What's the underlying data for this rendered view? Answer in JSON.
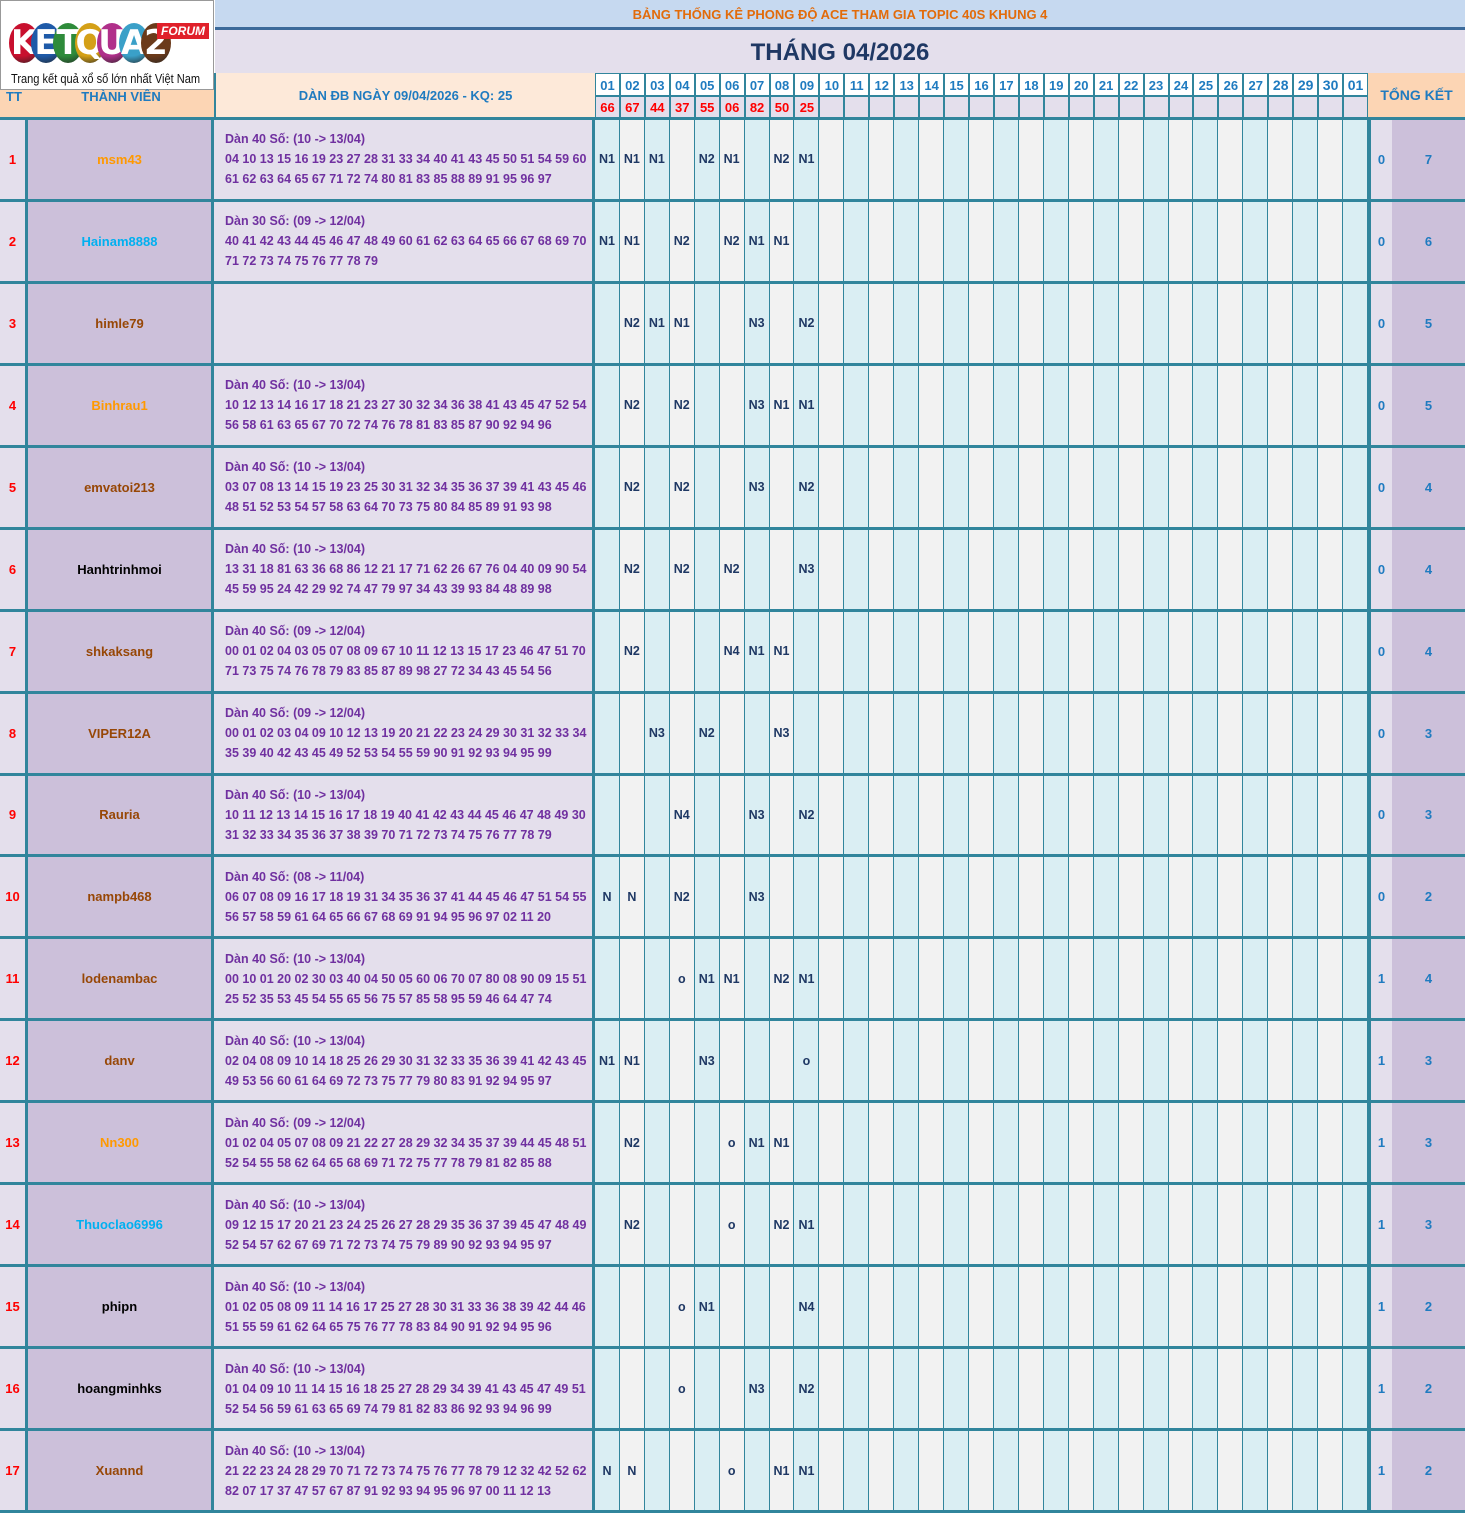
{
  "logo": {
    "text": "KETQUA2",
    "badge": "FORUM",
    "slogan": "Trang kết quả xổ số lớn nhất Việt Nam"
  },
  "header": {
    "title": "BẢNG THỐNG KÊ PHONG ĐỘ ACE THAM GIA TOPIC 40S KHUNG 4",
    "month": "THÁNG 04/2026",
    "tt": "TT",
    "member": "THÀNH VIÊN",
    "dan": "DÀN ĐB NGÀY 09/04/2026 - KQ: 25",
    "total": "TỔNG KẾT"
  },
  "days": [
    "01",
    "02",
    "03",
    "04",
    "05",
    "06",
    "07",
    "08",
    "09",
    "10",
    "11",
    "12",
    "13",
    "14",
    "15",
    "16",
    "17",
    "18",
    "19",
    "20",
    "21",
    "22",
    "23",
    "24",
    "25",
    "26",
    "27",
    "28",
    "29",
    "30",
    "01"
  ],
  "results": [
    "66",
    "67",
    "44",
    "37",
    "55",
    "06",
    "82",
    "50",
    "25"
  ],
  "colors": {
    "orange": "#ff9900",
    "cyan": "#00b0f0",
    "brown": "#974706",
    "black": "#000000",
    "border": "#31859c"
  },
  "rows": [
    {
      "tt": "1",
      "name": "msm43",
      "color": "orange",
      "dan": "Dàn 40 Số: (10 -> 13/04)",
      "l1": "04 10 13 15 16 19 23 27 28 31 33 34 40 41 43 45 50 51 54 59 60",
      "l2": "61 62 63 64 65 67 71 72 74 80 81 83 85 88 89 91 95 96 97",
      "marks": [
        "N1",
        "N1",
        "N1",
        "",
        "N2",
        "N1",
        "",
        "N2",
        "N1"
      ],
      "zero": "0",
      "total": "7"
    },
    {
      "tt": "2",
      "name": "Hainam8888",
      "color": "cyan",
      "dan": "Dàn 30 Số: (09 -> 12/04)",
      "l1": "40 41 42 43 44 45 46 47 48 49 60 61 62 63 64 65 66 67 68 69 70",
      "l2": "71 72 73 74 75 76 77 78 79",
      "marks": [
        "N1",
        "N1",
        "",
        "N2",
        "",
        "N2",
        "N1",
        "N1",
        ""
      ],
      "zero": "0",
      "total": "6"
    },
    {
      "tt": "3",
      "name": "himle79",
      "color": "brown",
      "dan": "",
      "l1": "",
      "l2": "",
      "marks": [
        "",
        "N2",
        "N1",
        "N1",
        "",
        "",
        "N3",
        "",
        "N2"
      ],
      "zero": "0",
      "total": "5"
    },
    {
      "tt": "4",
      "name": "Binhrau1",
      "color": "orange",
      "dan": "Dàn 40 Số: (10 -> 13/04)",
      "l1": "10 12 13 14 16 17 18 21 23 27 30 32 34 36 38 41 43 45 47 52 54",
      "l2": "56 58 61 63 65 67 70 72 74 76 78 81 83 85 87 90 92 94 96",
      "marks": [
        "",
        "N2",
        "",
        "N2",
        "",
        "",
        "N3",
        "N1",
        "N1"
      ],
      "zero": "0",
      "total": "5"
    },
    {
      "tt": "5",
      "name": "emvatoi213",
      "color": "brown",
      "dan": "Dàn 40 Số: (10 -> 13/04)",
      "l1": "03 07 08 13 14 15 19 23 25 30 31 32 34 35 36 37 39 41 43 45 46",
      "l2": "48 51 52 53 54 57 58 63 64 70 73 75 80 84 85 89 91 93 98",
      "marks": [
        "",
        "N2",
        "",
        "N2",
        "",
        "",
        "N3",
        "",
        "N2"
      ],
      "zero": "0",
      "total": "4"
    },
    {
      "tt": "6",
      "name": "Hanhtrinhmoi",
      "color": "black",
      "dan": "Dàn 40 Số: (10 -> 13/04)",
      "l1": "13 31 18 81 63 36 68 86 12 21 17 71 62 26 67 76 04 40 09 90 54",
      "l2": "45 59 95 24 42 29 92 74 47 79 97 34 43 39 93 84 48 89 98",
      "marks": [
        "",
        "N2",
        "",
        "N2",
        "",
        "N2",
        "",
        "",
        "N3"
      ],
      "zero": "0",
      "total": "4"
    },
    {
      "tt": "7",
      "name": "shkaksang",
      "color": "brown",
      "dan": "Dàn 40 Số: (09 -> 12/04)",
      "l1": "00 01 02 04 03 05 07 08 09 67 10 11 12 13 15 17 23 46 47 51 70",
      "l2": "71 73 75 74 76 78 79 83 85 87 89 98 27 72 34 43 45 54 56",
      "marks": [
        "",
        "N2",
        "",
        "",
        "",
        "N4",
        "N1",
        "N1",
        ""
      ],
      "zero": "0",
      "total": "4"
    },
    {
      "tt": "8",
      "name": "VIPER12A",
      "color": "brown",
      "dan": "Dàn 40 Số: (09 -> 12/04)",
      "l1": "00 01 02 03 04 09 10 12 13 19 20 21 22 23 24 29 30 31 32 33 34",
      "l2": "35 39 40 42 43 45 49 52 53 54 55 59 90 91 92 93 94 95 99",
      "marks": [
        "",
        "",
        "N3",
        "",
        "N2",
        "",
        "",
        "N3",
        ""
      ],
      "zero": "0",
      "total": "3"
    },
    {
      "tt": "9",
      "name": "Rauria",
      "color": "brown",
      "dan": "Dàn 40 Số: (10 -> 13/04)",
      "l1": "10 11 12 13 14 15 16 17 18 19 40 41 42 43 44 45 46 47 48 49 30",
      "l2": "31 32 33 34 35 36 37 38 39 70 71 72 73 74 75 76 77 78 79",
      "marks": [
        "",
        "",
        "",
        "N4",
        "",
        "",
        "N3",
        "",
        "N2"
      ],
      "zero": "0",
      "total": "3"
    },
    {
      "tt": "10",
      "name": "nampb468",
      "color": "brown",
      "dan": "Dàn 40 Số: (08 -> 11/04)",
      "l1": "06 07 08 09 16 17 18 19 31 34 35 36 37 41 44 45 46 47 51 54 55",
      "l2": "56 57 58 59 61 64 65 66 67 68 69 91 94 95 96 97 02 11 20",
      "marks": [
        "N",
        "N",
        "",
        "N2",
        "",
        "",
        "N3",
        "",
        ""
      ],
      "zero": "0",
      "total": "2"
    },
    {
      "tt": "11",
      "name": "lodenambac",
      "color": "brown",
      "dan": "Dàn 40 Số: (10 -> 13/04)",
      "l1": "00 10 01 20 02 30 03 40 04 50 05 60 06 70 07 80 08 90 09 15 51",
      "l2": "25 52 35 53 45 54 55 65 56 75 57 85 58 95 59 46 64 47 74",
      "marks": [
        "",
        "",
        "",
        "o",
        "N1",
        "N1",
        "",
        "N2",
        "N1"
      ],
      "zero": "1",
      "total": "4"
    },
    {
      "tt": "12",
      "name": "danv",
      "color": "brown",
      "dan": "Dàn 40 Số: (10 -> 13/04)",
      "l1": "02 04 08 09 10 14 18 25 26 29 30 31 32 33 35 36 39 41 42 43 45",
      "l2": "49 53 56 60 61 64 69 72 73 75 77 79 80 83 91 92 94 95 97",
      "marks": [
        "N1",
        "N1",
        "",
        "",
        "N3",
        "",
        "",
        "",
        "o"
      ],
      "zero": "1",
      "total": "3"
    },
    {
      "tt": "13",
      "name": "Nn300",
      "color": "orange",
      "dan": "Dàn 40 Số: (09 -> 12/04)",
      "l1": "01 02 04 05 07 08 09 21 22 27 28 29 32 34 35 37 39 44 45 48 51",
      "l2": "52 54 55 58 62 64 65 68 69 71 72 75 77 78 79 81 82 85 88",
      "marks": [
        "",
        "N2",
        "",
        "",
        "",
        "o",
        "N1",
        "N1",
        ""
      ],
      "zero": "1",
      "total": "3"
    },
    {
      "tt": "14",
      "name": "Thuoclao6996",
      "color": "cyan",
      "dan": "Dàn 40 Số: (10 -> 13/04)",
      "l1": "09 12 15 17 20 21 23 24 25 26 27 28 29 35 36 37 39 45 47 48 49",
      "l2": "52 54 57 62 67 69 71 72 73 74 75 79 89 90 92 93 94 95 97",
      "marks": [
        "",
        "N2",
        "",
        "",
        "",
        "o",
        "",
        "N2",
        "N1"
      ],
      "zero": "1",
      "total": "3"
    },
    {
      "tt": "15",
      "name": "phipn",
      "color": "black",
      "dan": "Dàn 40 Số: (10 -> 13/04)",
      "l1": "01 02 05 08 09 11 14 16 17 25 27 28 30 31 33 36 38 39 42 44 46",
      "l2": "51 55 59 61 62 64 65 75 76 77 78 83 84 90 91 92 94 95 96",
      "marks": [
        "",
        "",
        "",
        "o",
        "N1",
        "",
        "",
        "",
        "N4"
      ],
      "zero": "1",
      "total": "2"
    },
    {
      "tt": "16",
      "name": "hoangminhks",
      "color": "black",
      "dan": "Dàn 40 Số: (10 -> 13/04)",
      "l1": "01 04 09 10 11 14 15 16 18 25 27 28 29 34 39 41 43 45 47 49 51",
      "l2": "52 54 56 59 61 63 65 69 74 79 81 82 83 86 92 93 94 96 99",
      "marks": [
        "",
        "",
        "",
        "o",
        "",
        "",
        "N3",
        "",
        "N2"
      ],
      "zero": "1",
      "total": "2"
    },
    {
      "tt": "17",
      "name": "Xuannd",
      "color": "brown",
      "dan": "Dàn 40 Số: (10 -> 13/04)",
      "l1": "21 22 23 24 28 29 70 71 72 73 74 75 76 77 78 79 12 32 42 52 62",
      "l2": "82 07 17 37 47 57 67 87 91 92 93 94 95 96 97 00 11 12 13",
      "marks": [
        "N",
        "N",
        "",
        "",
        "",
        "o",
        "",
        "N1",
        "N1"
      ],
      "zero": "1",
      "total": "2"
    }
  ]
}
